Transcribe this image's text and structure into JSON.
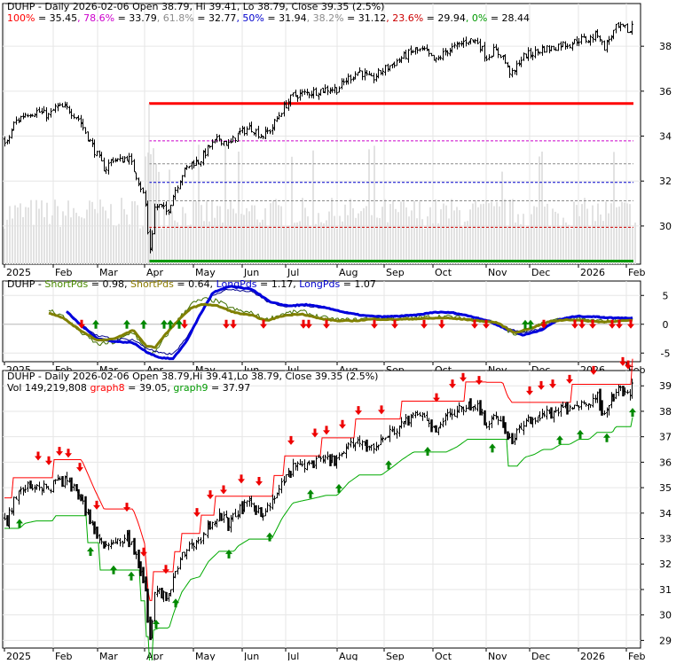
{
  "chart_data": [
    {
      "type": "ohlc",
      "panel": "price-fibonacci",
      "ticker": "DUHP",
      "header": "DUHP - Daily 2026-02-06 Open 38.79, Hi 39.41, Lo 38.79, Close 39.35 (2.5%)",
      "fib_levels": [
        {
          "label": "100%",
          "value": 35.45,
          "color": "#ff0000"
        },
        {
          "label": "78.6%",
          "value": 33.79,
          "color": "#cc00cc"
        },
        {
          "label": "61.8%",
          "value": 32.77,
          "color": "#8c8c8c"
        },
        {
          "label": "50%",
          "value": 31.94,
          "color": "#0000cc"
        },
        {
          "label": "38.2%",
          "value": 31.12,
          "color": "#8c8c8c"
        },
        {
          "label": "23.6%",
          "value": 29.94,
          "color": "#cc0000"
        },
        {
          "label": "0%",
          "value": 28.44,
          "color": "#009900"
        }
      ],
      "y_ticks": [
        30,
        32,
        34,
        36,
        38
      ],
      "ylim": [
        28.3,
        39.9
      ],
      "x_labels": [
        "2025",
        "Feb",
        "Mar",
        "Apr",
        "May",
        "Jun",
        "Jul",
        "Aug",
        "Sep",
        "Oct",
        "Nov",
        "Dec",
        "2026",
        "Feb"
      ],
      "close_anchors": [
        [
          0,
          34.5
        ],
        [
          6,
          33.5
        ],
        [
          16,
          34.6
        ],
        [
          28,
          35.0
        ],
        [
          42,
          35.1
        ],
        [
          55,
          34.9
        ],
        [
          63,
          35.3
        ],
        [
          77,
          35.2
        ],
        [
          88,
          34.8
        ],
        [
          97,
          34.1
        ],
        [
          107,
          33.3
        ],
        [
          118,
          32.5
        ],
        [
          126,
          33.0
        ],
        [
          135,
          32.9
        ],
        [
          144,
          33.1
        ],
        [
          156,
          32.0
        ],
        [
          163,
          31.2
        ],
        [
          167,
          29.3
        ],
        [
          170,
          28.8
        ],
        [
          173,
          30.8
        ],
        [
          180,
          30.9
        ],
        [
          188,
          30.6
        ],
        [
          196,
          31.5
        ],
        [
          205,
          32.3
        ],
        [
          215,
          32.8
        ],
        [
          225,
          32.9
        ],
        [
          235,
          33.5
        ],
        [
          247,
          33.9
        ],
        [
          258,
          33.6
        ],
        [
          268,
          34.1
        ],
        [
          282,
          34.4
        ],
        [
          295,
          34.0
        ],
        [
          305,
          34.3
        ],
        [
          318,
          35.2
        ],
        [
          330,
          35.8
        ],
        [
          343,
          35.9
        ],
        [
          356,
          36.0
        ],
        [
          368,
          36.1
        ],
        [
          380,
          36.1
        ],
        [
          393,
          36.6
        ],
        [
          405,
          36.9
        ],
        [
          418,
          36.5
        ],
        [
          430,
          36.9
        ],
        [
          442,
          37.2
        ],
        [
          453,
          37.5
        ],
        [
          466,
          37.8
        ],
        [
          478,
          37.8
        ],
        [
          490,
          37.3
        ],
        [
          503,
          37.8
        ],
        [
          515,
          38.0
        ],
        [
          527,
          38.3
        ],
        [
          538,
          38.2
        ],
        [
          548,
          37.5
        ],
        [
          556,
          37.8
        ],
        [
          566,
          37.6
        ],
        [
          572,
          37.0
        ],
        [
          578,
          36.7
        ],
        [
          584,
          37.3
        ],
        [
          592,
          37.6
        ],
        [
          602,
          37.7
        ],
        [
          612,
          37.9
        ],
        [
          622,
          37.9
        ],
        [
          632,
          38.1
        ],
        [
          642,
          38.1
        ],
        [
          652,
          38.3
        ],
        [
          664,
          38.3
        ],
        [
          674,
          38.6
        ],
        [
          680,
          37.9
        ],
        [
          686,
          38.3
        ],
        [
          694,
          38.8
        ],
        [
          704,
          38.8
        ],
        [
          710,
          38.6
        ],
        [
          714,
          39.35
        ]
      ],
      "volume_note": "Vol 149,219,808"
    },
    {
      "type": "line",
      "panel": "momentum",
      "header_parts": [
        {
          "text": "DUHP",
          "color": "#000000"
        },
        {
          "text": " - ",
          "color": "#000000"
        },
        {
          "text": "ShortPds",
          "color": "#4a8a00"
        },
        {
          "text": " = 0.98, ",
          "color": "#000000"
        },
        {
          "text": "ShortPds",
          "color": "#8a7a00"
        },
        {
          "text": " = 0.64, ",
          "color": "#000000"
        },
        {
          "text": "LongPds",
          "color": "#0000cc"
        },
        {
          "text": " = 1.17, ",
          "color": "#000000"
        },
        {
          "text": "LongPds",
          "color": "#0000cc"
        },
        {
          "text": " = 1.07",
          "color": "#000000"
        }
      ],
      "y_ticks": [
        -5,
        0,
        5
      ],
      "ylim": [
        -6.5,
        7.5
      ],
      "x_labels": [
        "2025",
        "Feb",
        "Mar",
        "Apr",
        "May",
        "Jun",
        "Jul",
        "Aug",
        "Sep",
        "Oct",
        "Nov",
        "Dec",
        "2026",
        "Feb"
      ],
      "series": [
        {
          "name": "ShortPds",
          "color": "#808000",
          "anchors": [
            [
              55,
              2.0
            ],
            [
              70,
              1.2
            ],
            [
              90,
              -1.0
            ],
            [
              110,
              -2.8
            ],
            [
              130,
              -2.5
            ],
            [
              150,
              -1.0
            ],
            [
              165,
              -3.8
            ],
            [
              175,
              -4.0
            ],
            [
              185,
              -2.0
            ],
            [
              200,
              0.5
            ],
            [
              215,
              2.8
            ],
            [
              230,
              3.5
            ],
            [
              245,
              3.2
            ],
            [
              265,
              2.0
            ],
            [
              285,
              1.5
            ],
            [
              300,
              0.6
            ],
            [
              320,
              1.5
            ],
            [
              340,
              1.8
            ],
            [
              360,
              1.0
            ],
            [
              380,
              0.6
            ],
            [
              400,
              0.6
            ],
            [
              420,
              0.9
            ],
            [
              440,
              0.8
            ],
            [
              460,
              0.9
            ],
            [
              480,
              1.0
            ],
            [
              500,
              1.1
            ],
            [
              520,
              0.9
            ],
            [
              540,
              0.6
            ],
            [
              560,
              0.3
            ],
            [
              580,
              -1.5
            ],
            [
              600,
              -0.6
            ],
            [
              620,
              0.5
            ],
            [
              640,
              0.8
            ],
            [
              660,
              0.6
            ],
            [
              680,
              0.4
            ],
            [
              700,
              0.6
            ],
            [
              714,
              0.64
            ]
          ]
        },
        {
          "name": "LongPds",
          "color": "#0000dd",
          "anchors": [
            [
              75,
              2.2
            ],
            [
              90,
              0.0
            ],
            [
              110,
              -2.5
            ],
            [
              130,
              -3.0
            ],
            [
              150,
              -3.2
            ],
            [
              165,
              -4.8
            ],
            [
              180,
              -5.8
            ],
            [
              195,
              -6.0
            ],
            [
              210,
              -3.0
            ],
            [
              225,
              1.5
            ],
            [
              240,
              5.5
            ],
            [
              260,
              6.6
            ],
            [
              285,
              6.0
            ],
            [
              305,
              3.8
            ],
            [
              325,
              3.2
            ],
            [
              345,
              3.4
            ],
            [
              370,
              2.8
            ],
            [
              390,
              2.0
            ],
            [
              410,
              1.5
            ],
            [
              430,
              1.3
            ],
            [
              450,
              1.4
            ],
            [
              470,
              1.6
            ],
            [
              490,
              2.1
            ],
            [
              510,
              2.0
            ],
            [
              530,
              1.4
            ],
            [
              550,
              0.6
            ],
            [
              570,
              -0.8
            ],
            [
              590,
              -1.9
            ],
            [
              610,
              -1.0
            ],
            [
              630,
              0.8
            ],
            [
              650,
              1.4
            ],
            [
              670,
              1.3
            ],
            [
              690,
              1.1
            ],
            [
              714,
              1.07
            ]
          ]
        }
      ],
      "signals": {
        "sell_x": [
          92,
          208,
          255,
          263,
          297,
          342,
          348,
          368,
          422,
          445,
          478,
          498,
          535,
          548,
          613,
          648,
          656,
          668,
          690,
          698,
          711
        ],
        "buy_x": [
          108,
          143,
          162,
          185,
          192,
          202,
          592,
          598
        ]
      }
    },
    {
      "type": "ohlc",
      "panel": "trailing-stop",
      "header": "DUHP - Daily 2026-02-06 Open 38.79,Hi 39.41,Lo 38.79, Close 39.35 (2.5%)",
      "vol_label": "Vol 149,219,808",
      "graph8_label": "graph8",
      "graph8_value": " = 39.05, ",
      "graph9_label": "graph9",
      "graph9_value": " = 37.97",
      "y_ticks": [
        29,
        30,
        31,
        32,
        33,
        34,
        35,
        36,
        37,
        38,
        39
      ],
      "ylim": [
        28.7,
        39.6
      ],
      "x_labels": [
        "2025",
        "Feb",
        "Mar",
        "Apr",
        "May",
        "Jun",
        "Jul",
        "Aug",
        "Sep",
        "Oct",
        "Nov",
        "Dec",
        "2026",
        "Feb"
      ],
      "signals": {
        "sell_x": [
          43,
          55,
          67,
          77,
          90,
          109,
          143,
          162,
          187,
          222,
          237,
          252,
          272,
          292,
          328,
          355,
          368,
          386,
          404,
          430,
          492,
          510,
          522,
          540,
          597,
          610,
          623,
          642,
          669,
          702,
          708
        ],
        "buy_x": [
          22,
          102,
          128,
          148,
          176,
          198,
          258,
          304,
          350,
          382,
          438,
          482,
          555,
          631,
          654,
          684,
          713
        ]
      }
    }
  ]
}
